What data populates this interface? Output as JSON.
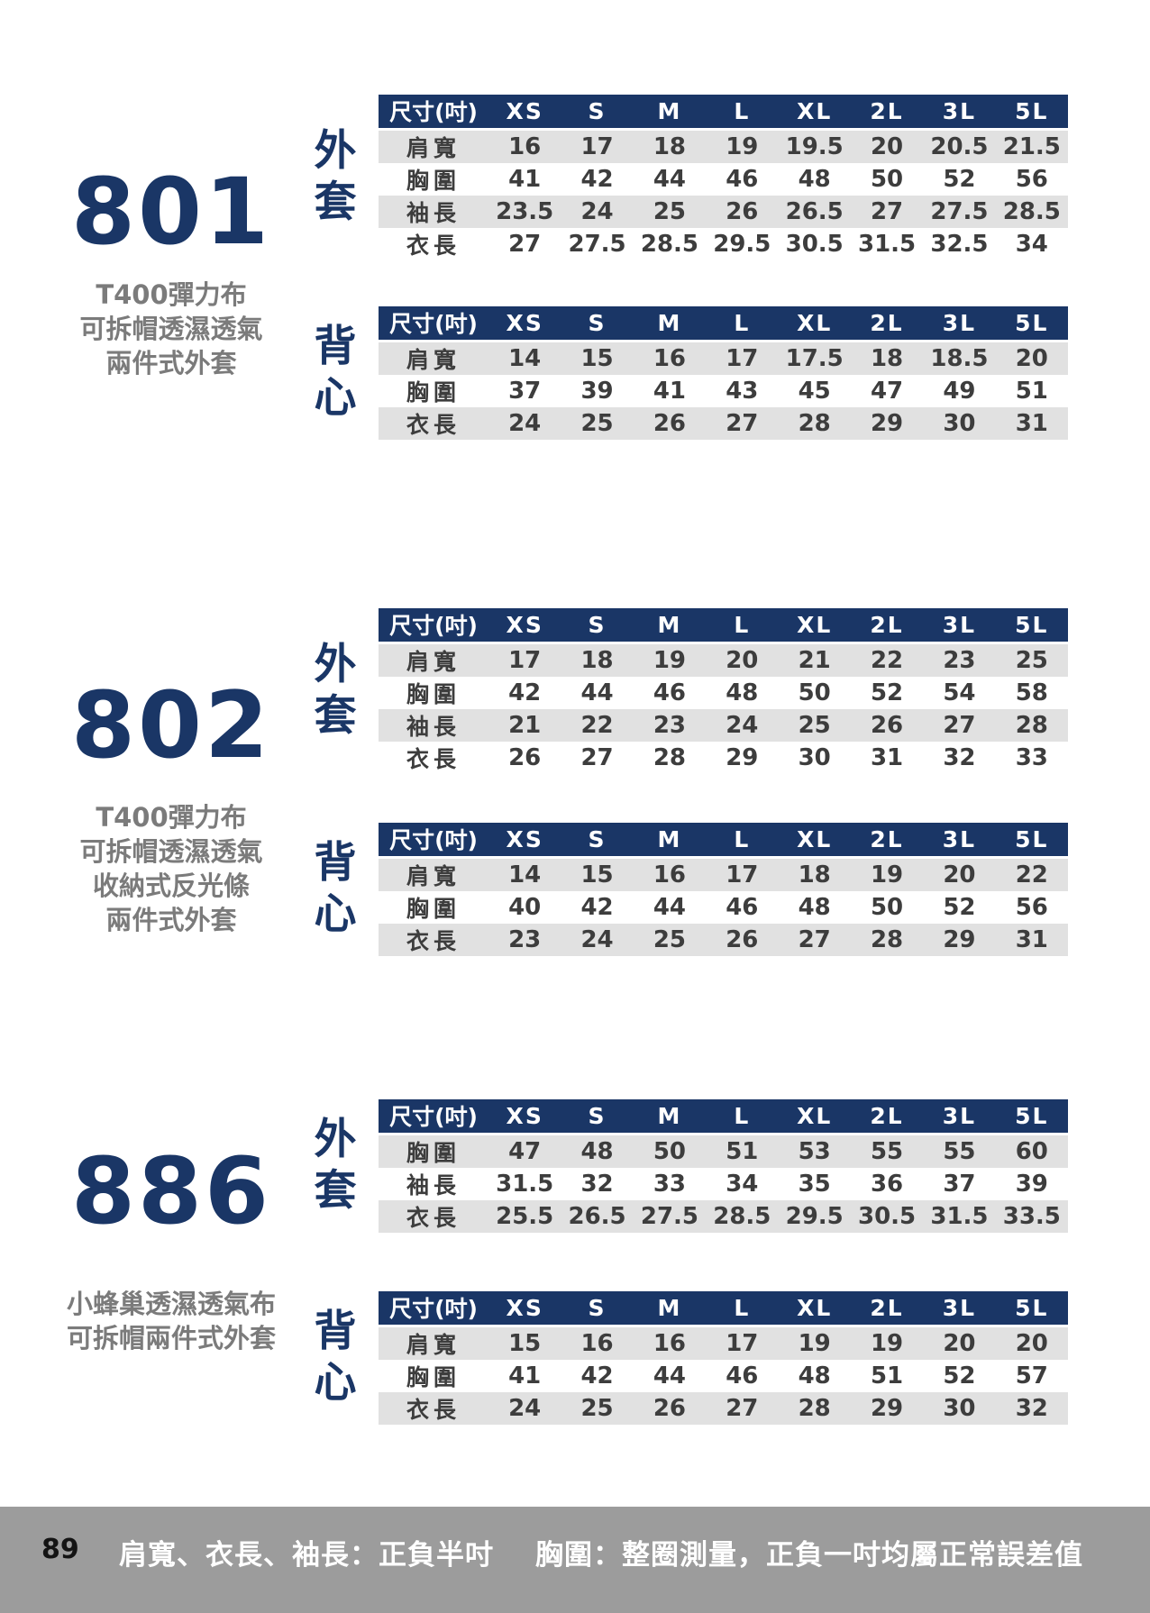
{
  "sizes_header": [
    "尺寸(吋)",
    "XS",
    "S",
    "M",
    "L",
    "XL",
    "2L",
    "3L",
    "5L"
  ],
  "products": [
    {
      "code": "801",
      "description": [
        "T400彈力布",
        "可拆帽透濕透氣",
        "兩件式外套"
      ],
      "tables": [
        {
          "garment": "外套",
          "rows": [
            {
              "label": "肩寬",
              "values": [
                "16",
                "17",
                "18",
                "19",
                "19.5",
                "20",
                "20.5",
                "21.5"
              ]
            },
            {
              "label": "胸圍",
              "values": [
                "41",
                "42",
                "44",
                "46",
                "48",
                "50",
                "52",
                "56"
              ]
            },
            {
              "label": "袖長",
              "values": [
                "23.5",
                "24",
                "25",
                "26",
                "26.5",
                "27",
                "27.5",
                "28.5"
              ]
            },
            {
              "label": "衣長",
              "values": [
                "27",
                "27.5",
                "28.5",
                "29.5",
                "30.5",
                "31.5",
                "32.5",
                "34"
              ]
            }
          ]
        },
        {
          "garment": "背心",
          "rows": [
            {
              "label": "肩寬",
              "values": [
                "14",
                "15",
                "16",
                "17",
                "17.5",
                "18",
                "18.5",
                "20"
              ]
            },
            {
              "label": "胸圍",
              "values": [
                "37",
                "39",
                "41",
                "43",
                "45",
                "47",
                "49",
                "51"
              ]
            },
            {
              "label": "衣長",
              "values": [
                "24",
                "25",
                "26",
                "27",
                "28",
                "29",
                "30",
                "31"
              ]
            }
          ]
        }
      ]
    },
    {
      "code": "802",
      "description": [
        "T400彈力布",
        "可拆帽透濕透氣",
        "收納式反光條",
        "兩件式外套"
      ],
      "tables": [
        {
          "garment": "外套",
          "rows": [
            {
              "label": "肩寬",
              "values": [
                "17",
                "18",
                "19",
                "20",
                "21",
                "22",
                "23",
                "25"
              ]
            },
            {
              "label": "胸圍",
              "values": [
                "42",
                "44",
                "46",
                "48",
                "50",
                "52",
                "54",
                "58"
              ]
            },
            {
              "label": "袖長",
              "values": [
                "21",
                "22",
                "23",
                "24",
                "25",
                "26",
                "27",
                "28"
              ]
            },
            {
              "label": "衣長",
              "values": [
                "26",
                "27",
                "28",
                "29",
                "30",
                "31",
                "32",
                "33"
              ]
            }
          ]
        },
        {
          "garment": "背心",
          "rows": [
            {
              "label": "肩寬",
              "values": [
                "14",
                "15",
                "16",
                "17",
                "18",
                "19",
                "20",
                "22"
              ]
            },
            {
              "label": "胸圍",
              "values": [
                "40",
                "42",
                "44",
                "46",
                "48",
                "50",
                "52",
                "56"
              ]
            },
            {
              "label": "衣長",
              "values": [
                "23",
                "24",
                "25",
                "26",
                "27",
                "28",
                "29",
                "31"
              ]
            }
          ]
        }
      ]
    },
    {
      "code": "886",
      "description": [
        "小蜂巢透濕透氣布",
        "可拆帽兩件式外套"
      ],
      "tables": [
        {
          "garment": "外套",
          "rows": [
            {
              "label": "胸圍",
              "values": [
                "47",
                "48",
                "50",
                "51",
                "53",
                "55",
                "55",
                "60"
              ]
            },
            {
              "label": "袖長",
              "values": [
                "31.5",
                "32",
                "33",
                "34",
                "35",
                "36",
                "37",
                "39"
              ]
            },
            {
              "label": "衣長",
              "values": [
                "25.5",
                "26.5",
                "27.5",
                "28.5",
                "29.5",
                "30.5",
                "31.5",
                "33.5"
              ]
            }
          ]
        },
        {
          "garment": "背心",
          "rows": [
            {
              "label": "肩寬",
              "values": [
                "15",
                "16",
                "16",
                "17",
                "19",
                "19",
                "20",
                "20"
              ]
            },
            {
              "label": "胸圍",
              "values": [
                "41",
                "42",
                "44",
                "46",
                "48",
                "51",
                "52",
                "57"
              ]
            },
            {
              "label": "衣長",
              "values": [
                "24",
                "25",
                "26",
                "27",
                "28",
                "29",
                "30",
                "32"
              ]
            }
          ]
        }
      ]
    }
  ],
  "footer": {
    "page_number": "89",
    "note1": "肩寬、衣長、袖長：正負半吋",
    "note2": "胸圍：整圈測量，正負一吋均屬正常誤差值"
  },
  "colors": {
    "navy": "#1a3666",
    "row_gray": "#e1e1e1",
    "desc_gray": "#7b7b7b",
    "footer_gray": "#9c9c9c"
  }
}
